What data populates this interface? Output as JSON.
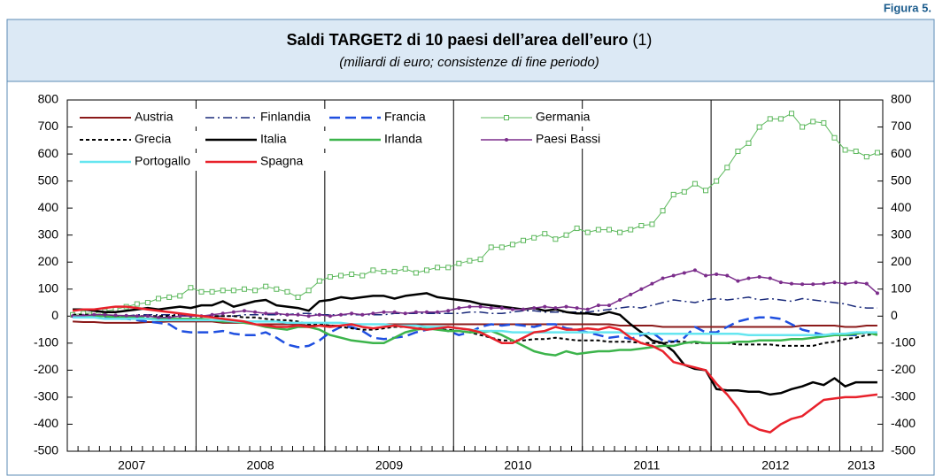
{
  "figure_label": "Figura 5.",
  "chart_data": {
    "type": "line",
    "title": "Saldi TARGET2 di 10 paesi dell’area dell’euro",
    "title_note": "(1)",
    "subtitle": "(miliardi di euro; consistenze di fine periodo)",
    "categories": [
      "2007",
      "2007",
      "2007",
      "2007",
      "2007",
      "2007",
      "2007",
      "2007",
      "2007",
      "2007",
      "2007",
      "2007",
      "2008",
      "2008",
      "2008",
      "2008",
      "2008",
      "2008",
      "2008",
      "2008",
      "2008",
      "2008",
      "2008",
      "2008",
      "2009",
      "2009",
      "2009",
      "2009",
      "2009",
      "2009",
      "2009",
      "2009",
      "2009",
      "2009",
      "2009",
      "2009",
      "2010",
      "2010",
      "2010",
      "2010",
      "2010",
      "2010",
      "2010",
      "2010",
      "2010",
      "2010",
      "2010",
      "2010",
      "2011",
      "2011",
      "2011",
      "2011",
      "2011",
      "2011",
      "2011",
      "2011",
      "2011",
      "2011",
      "2011",
      "2011",
      "2012",
      "2012",
      "2012",
      "2012",
      "2012",
      "2012",
      "2012",
      "2012",
      "2012",
      "2012",
      "2012",
      "2012",
      "2013",
      "2013",
      "2013",
      "2013"
    ],
    "ylim": [
      -500,
      800
    ],
    "yticks": [
      -500,
      -400,
      -300,
      -200,
      -100,
      0,
      100,
      200,
      300,
      400,
      500,
      600,
      700,
      800
    ],
    "y2lim": [
      -500,
      800
    ],
    "y2ticks": [
      -500,
      -400,
      -300,
      -200,
      -100,
      0,
      100,
      200,
      300,
      400,
      500,
      600,
      700,
      800
    ],
    "legend": "top-left",
    "series": [
      {
        "name": "Austria",
        "color": "#8b1a1a",
        "width": 2,
        "dash": "solid",
        "marker": "none",
        "values": [
          -20,
          -22,
          -22,
          -25,
          -25,
          -25,
          -25,
          -22,
          -22,
          -20,
          -20,
          -20,
          -20,
          -20,
          -25,
          -25,
          -25,
          -30,
          -30,
          -30,
          -30,
          -30,
          -35,
          -35,
          -35,
          -35,
          -30,
          -30,
          -30,
          -30,
          -30,
          -30,
          -30,
          -30,
          -30,
          -30,
          -30,
          -30,
          -30,
          -30,
          -30,
          -30,
          -30,
          -30,
          -30,
          -30,
          -30,
          -30,
          -30,
          -30,
          -30,
          -35,
          -35,
          -35,
          -35,
          -40,
          -40,
          -40,
          -40,
          -40,
          -40,
          -40,
          -40,
          -40,
          -40,
          -40,
          -40,
          -40,
          -35,
          -35,
          -35,
          -35,
          -40,
          -40,
          -35,
          -35
        ]
      },
      {
        "name": "Finlandia",
        "color": "#1a2a7a",
        "width": 1.5,
        "dash": "dashdot",
        "marker": "none",
        "values": [
          0,
          0,
          0,
          0,
          0,
          0,
          5,
          5,
          5,
          5,
          5,
          0,
          0,
          0,
          0,
          0,
          5,
          5,
          5,
          5,
          5,
          10,
          10,
          5,
          5,
          5,
          5,
          5,
          5,
          5,
          10,
          10,
          10,
          10,
          10,
          10,
          10,
          15,
          15,
          10,
          10,
          15,
          20,
          20,
          15,
          15,
          15,
          15,
          15,
          20,
          25,
          30,
          35,
          30,
          40,
          50,
          60,
          55,
          50,
          60,
          65,
          60,
          65,
          70,
          60,
          65,
          60,
          55,
          65,
          60,
          55,
          50,
          45,
          35,
          30,
          30
        ]
      },
      {
        "name": "Francia",
        "color": "#1f4fe0",
        "width": 2.5,
        "dash": "dash",
        "marker": "none",
        "values": [
          0,
          0,
          -5,
          -5,
          -10,
          -10,
          -15,
          -20,
          -25,
          -30,
          -55,
          -60,
          -60,
          -60,
          -55,
          -65,
          -70,
          -70,
          -60,
          -80,
          -105,
          -115,
          -110,
          -90,
          -60,
          -40,
          -40,
          -55,
          -80,
          -85,
          -80,
          -75,
          -60,
          -50,
          -45,
          -55,
          -70,
          -60,
          -40,
          -30,
          -35,
          -30,
          -35,
          -40,
          -30,
          -30,
          -45,
          -50,
          -60,
          -70,
          -80,
          -75,
          -85,
          -70,
          -60,
          -90,
          -95,
          -80,
          -40,
          -60,
          -60,
          -40,
          -20,
          -10,
          -5,
          -5,
          -10,
          -30,
          -50,
          -60,
          -70,
          -65,
          -70,
          -70,
          -60,
          -65
        ]
      },
      {
        "name": "Germania",
        "color": "#5cb85c",
        "width": 1,
        "dash": "solid",
        "marker": "square",
        "values": [
          5,
          10,
          12,
          18,
          25,
          35,
          45,
          50,
          65,
          70,
          75,
          105,
          90,
          90,
          95,
          95,
          100,
          95,
          110,
          100,
          90,
          70,
          95,
          130,
          145,
          150,
          155,
          150,
          170,
          165,
          165,
          175,
          160,
          170,
          180,
          180,
          195,
          205,
          210,
          255,
          255,
          265,
          280,
          290,
          305,
          285,
          300,
          325,
          310,
          320,
          320,
          310,
          320,
          335,
          340,
          390,
          450,
          460,
          490,
          465,
          500,
          550,
          610,
          640,
          700,
          730,
          730,
          750,
          700,
          720,
          715,
          660,
          615,
          610,
          590,
          605
        ]
      },
      {
        "name": "Grecia",
        "color": "#000000",
        "width": 2,
        "dash": "dot",
        "marker": "none",
        "values": [
          5,
          5,
          5,
          5,
          0,
          0,
          0,
          0,
          0,
          0,
          5,
          5,
          0,
          0,
          0,
          0,
          -5,
          -5,
          -10,
          -15,
          -15,
          -20,
          -30,
          -30,
          -35,
          -40,
          -45,
          -50,
          -50,
          -45,
          -40,
          -40,
          -45,
          -45,
          -50,
          -50,
          -55,
          -60,
          -70,
          -80,
          -90,
          -90,
          -90,
          -85,
          -85,
          -80,
          -85,
          -90,
          -90,
          -90,
          -95,
          -95,
          -95,
          -100,
          -100,
          -100,
          -95,
          -95,
          -100,
          -100,
          -100,
          -100,
          -105,
          -105,
          -105,
          -105,
          -110,
          -110,
          -110,
          -110,
          -100,
          -95,
          -85,
          -80,
          -70,
          -65
        ]
      },
      {
        "name": "Italia",
        "color": "#000000",
        "width": 2.5,
        "dash": "solid",
        "marker": "none",
        "values": [
          25,
          25,
          20,
          15,
          15,
          20,
          25,
          30,
          25,
          30,
          35,
          30,
          40,
          40,
          55,
          35,
          45,
          55,
          60,
          40,
          35,
          30,
          20,
          55,
          60,
          70,
          65,
          70,
          75,
          75,
          65,
          75,
          80,
          85,
          70,
          65,
          60,
          55,
          45,
          40,
          35,
          30,
          25,
          30,
          20,
          25,
          15,
          10,
          10,
          5,
          15,
          5,
          -30,
          -60,
          -90,
          -100,
          -130,
          -180,
          -195,
          -200,
          -270,
          -275,
          -275,
          -280,
          -280,
          -290,
          -285,
          -270,
          -260,
          -245,
          -255,
          -230,
          -260,
          -245,
          -245,
          -245
        ]
      },
      {
        "name": "Irlanda",
        "color": "#3cb44b",
        "width": 2.5,
        "dash": "solid",
        "marker": "none",
        "values": [
          0,
          0,
          0,
          0,
          -5,
          -5,
          -5,
          -10,
          -10,
          -10,
          -10,
          -10,
          -10,
          -15,
          -20,
          -20,
          -25,
          -30,
          -40,
          -45,
          -50,
          -40,
          -40,
          -50,
          -70,
          -80,
          -90,
          -95,
          -100,
          -100,
          -80,
          -60,
          -50,
          -45,
          -50,
          -55,
          -55,
          -60,
          -60,
          -55,
          -70,
          -90,
          -110,
          -130,
          -140,
          -145,
          -130,
          -140,
          -135,
          -130,
          -130,
          -125,
          -125,
          -120,
          -115,
          -110,
          -110,
          -100,
          -95,
          -100,
          -100,
          -100,
          -95,
          -95,
          -90,
          -90,
          -90,
          -85,
          -85,
          -80,
          -75,
          -70,
          -70,
          -65,
          -60,
          -70
        ]
      },
      {
        "name": "Paesi Bassi",
        "color": "#7b2d8b",
        "width": 1.5,
        "dash": "solid",
        "marker": "dot",
        "values": [
          0,
          2,
          5,
          5,
          3,
          2,
          0,
          0,
          -5,
          -5,
          0,
          0,
          0,
          5,
          10,
          15,
          20,
          15,
          10,
          10,
          5,
          5,
          0,
          5,
          0,
          5,
          10,
          5,
          10,
          15,
          15,
          10,
          15,
          15,
          15,
          20,
          30,
          35,
          35,
          30,
          30,
          25,
          25,
          30,
          35,
          30,
          35,
          30,
          25,
          40,
          40,
          60,
          80,
          100,
          120,
          140,
          150,
          160,
          170,
          150,
          155,
          150,
          130,
          140,
          145,
          140,
          125,
          120,
          118,
          118,
          120,
          125,
          120,
          125,
          120,
          85
        ]
      },
      {
        "name": "Portogallo",
        "color": "#66e6f0",
        "width": 2.5,
        "dash": "solid",
        "marker": "none",
        "values": [
          -5,
          -5,
          -5,
          -10,
          -10,
          -10,
          -10,
          -10,
          -15,
          -15,
          -15,
          -15,
          -15,
          -15,
          -15,
          -20,
          -20,
          -20,
          -20,
          -20,
          -25,
          -25,
          -25,
          -25,
          -25,
          -25,
          -30,
          -30,
          -30,
          -30,
          -35,
          -35,
          -35,
          -40,
          -40,
          -40,
          -45,
          -50,
          -55,
          -55,
          -55,
          -60,
          -60,
          -60,
          -60,
          -60,
          -60,
          -60,
          -60,
          -60,
          -60,
          -60,
          -65,
          -65,
          -65,
          -65,
          -65,
          -65,
          -65,
          -65,
          -65,
          -65,
          -65,
          -70,
          -70,
          -70,
          -70,
          -70,
          -70,
          -70,
          -70,
          -65,
          -65,
          -60,
          -60,
          -60
        ]
      },
      {
        "name": "Spagna",
        "color": "#e8212b",
        "width": 2.5,
        "dash": "solid",
        "marker": "none",
        "values": [
          20,
          25,
          25,
          30,
          35,
          35,
          30,
          25,
          20,
          15,
          10,
          5,
          0,
          -5,
          -10,
          -15,
          -20,
          -30,
          -35,
          -40,
          -40,
          -35,
          -40,
          -35,
          -40,
          -35,
          -30,
          -40,
          -45,
          -40,
          -35,
          -40,
          -45,
          -50,
          -45,
          -40,
          -45,
          -50,
          -60,
          -80,
          -100,
          -100,
          -80,
          -60,
          -55,
          -40,
          -50,
          -50,
          -45,
          -50,
          -40,
          -50,
          -80,
          -100,
          -110,
          -130,
          -170,
          -180,
          -190,
          -200,
          -250,
          -290,
          -340,
          -400,
          -420,
          -430,
          -400,
          -380,
          -370,
          -340,
          -310,
          -305,
          -300,
          -300,
          -295,
          -290
        ]
      }
    ]
  }
}
